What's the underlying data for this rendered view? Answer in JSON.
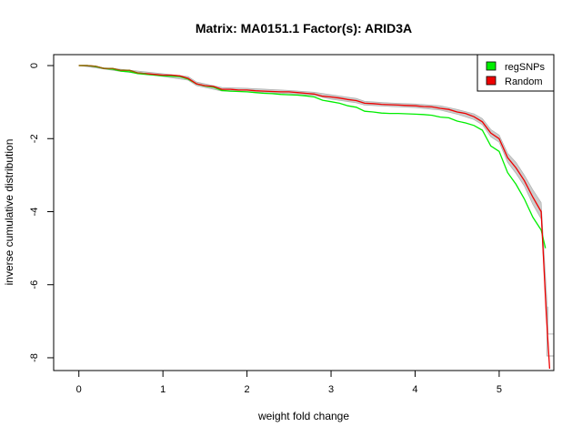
{
  "chart_data": {
    "type": "line",
    "title": "Matrix: MA0151.1 Factor(s): ARID3A",
    "xlabel": "weight fold change",
    "ylabel": "inverse cumulative distribution",
    "xlim": [
      -0.3,
      5.65
    ],
    "ylim": [
      -8.35,
      0.3
    ],
    "xticks": [
      0,
      1,
      2,
      3,
      4,
      5
    ],
    "yticks": [
      0,
      -2,
      -4,
      -6,
      -8
    ],
    "legend_position": "top-right",
    "grid": false,
    "series": [
      {
        "name": "regSNPs",
        "color": "#00ee00",
        "x": [
          0,
          0.1,
          0.2,
          0.3,
          0.4,
          0.5,
          0.6,
          0.7,
          0.8,
          0.9,
          1.0,
          1.1,
          1.2,
          1.3,
          1.4,
          1.5,
          1.6,
          1.7,
          1.8,
          1.9,
          2.0,
          2.1,
          2.2,
          2.3,
          2.4,
          2.5,
          2.6,
          2.7,
          2.8,
          2.9,
          3.0,
          3.1,
          3.2,
          3.3,
          3.4,
          3.5,
          3.6,
          3.7,
          3.8,
          3.9,
          4.0,
          4.1,
          4.2,
          4.3,
          4.4,
          4.5,
          4.6,
          4.7,
          4.8,
          4.9,
          5.0,
          5.1,
          5.2,
          5.3,
          5.4,
          5.5,
          5.55
        ],
        "y": [
          0,
          0,
          -0.03,
          -0.08,
          -0.1,
          -0.15,
          -0.17,
          -0.22,
          -0.24,
          -0.26,
          -0.28,
          -0.29,
          -0.3,
          -0.37,
          -0.5,
          -0.56,
          -0.59,
          -0.68,
          -0.7,
          -0.71,
          -0.72,
          -0.74,
          -0.76,
          -0.77,
          -0.79,
          -0.8,
          -0.81,
          -0.83,
          -0.86,
          -0.95,
          -0.99,
          -1.03,
          -1.1,
          -1.14,
          -1.25,
          -1.27,
          -1.3,
          -1.31,
          -1.31,
          -1.32,
          -1.33,
          -1.34,
          -1.36,
          -1.41,
          -1.43,
          -1.52,
          -1.57,
          -1.64,
          -1.77,
          -2.2,
          -2.35,
          -2.93,
          -3.25,
          -3.65,
          -4.15,
          -4.5,
          -5.0
        ]
      },
      {
        "name": "Random",
        "color": "#ee0000",
        "x": [
          0,
          0.1,
          0.2,
          0.3,
          0.4,
          0.5,
          0.6,
          0.7,
          0.8,
          0.9,
          1.0,
          1.1,
          1.2,
          1.3,
          1.4,
          1.5,
          1.6,
          1.7,
          1.8,
          1.9,
          2.0,
          2.1,
          2.2,
          2.3,
          2.4,
          2.5,
          2.6,
          2.7,
          2.8,
          2.9,
          3.0,
          3.1,
          3.2,
          3.3,
          3.4,
          3.5,
          3.6,
          3.7,
          3.8,
          3.9,
          4.0,
          4.1,
          4.2,
          4.3,
          4.4,
          4.5,
          4.6,
          4.7,
          4.8,
          4.9,
          5.0,
          5.1,
          5.2,
          5.3,
          5.4,
          5.5,
          5.56,
          5.6
        ],
        "y": [
          0,
          0,
          -0.02,
          -0.08,
          -0.08,
          -0.13,
          -0.13,
          -0.2,
          -0.22,
          -0.24,
          -0.26,
          -0.26,
          -0.28,
          -0.35,
          -0.5,
          -0.55,
          -0.57,
          -0.65,
          -0.65,
          -0.67,
          -0.67,
          -0.69,
          -0.7,
          -0.71,
          -0.72,
          -0.72,
          -0.74,
          -0.76,
          -0.78,
          -0.84,
          -0.86,
          -0.89,
          -0.93,
          -0.96,
          -1.03,
          -1.04,
          -1.06,
          -1.07,
          -1.08,
          -1.09,
          -1.1,
          -1.12,
          -1.13,
          -1.17,
          -1.2,
          -1.27,
          -1.31,
          -1.4,
          -1.54,
          -1.85,
          -2.0,
          -2.52,
          -2.8,
          -3.15,
          -3.6,
          -4.0,
          -6.8,
          -8.3
        ]
      }
    ],
    "random_band": {
      "color": "#bbbbbb",
      "x": [
        0,
        0.5,
        1.0,
        1.3,
        1.4,
        1.7,
        2.0,
        2.5,
        2.8,
        3.0,
        3.3,
        3.4,
        3.7,
        4.0,
        4.3,
        4.5,
        4.7,
        4.8,
        4.9,
        5.0,
        5.1,
        5.2,
        5.3,
        5.4,
        5.5,
        5.57
      ],
      "upper": [
        0,
        -0.1,
        -0.22,
        -0.3,
        -0.45,
        -0.6,
        -0.62,
        -0.68,
        -0.73,
        -0.8,
        -0.9,
        -0.98,
        -1.02,
        -1.05,
        -1.1,
        -1.2,
        -1.32,
        -1.45,
        -1.75,
        -1.9,
        -2.4,
        -2.65,
        -3.0,
        -3.4,
        -3.75,
        -6.5
      ],
      "lower": [
        0,
        -0.16,
        -0.3,
        -0.4,
        -0.55,
        -0.7,
        -0.72,
        -0.77,
        -0.82,
        -0.92,
        -1.02,
        -1.08,
        -1.12,
        -1.15,
        -1.22,
        -1.33,
        -1.48,
        -1.62,
        -1.95,
        -2.1,
        -2.65,
        -2.95,
        -3.3,
        -3.8,
        -4.2,
        -7.2
      ]
    }
  }
}
